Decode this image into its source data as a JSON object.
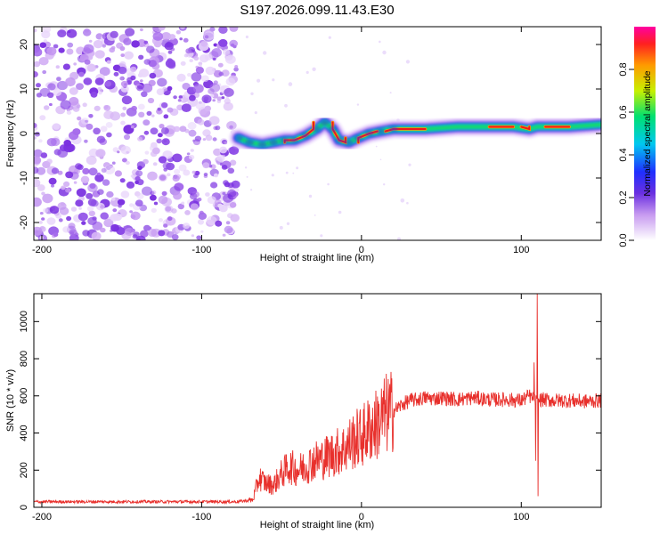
{
  "title": "S197.2026.099.11.43.E30",
  "chart_data": [
    {
      "type": "heatmap",
      "name": "spectrogram",
      "xlabel": "Height of straight line (km)",
      "ylabel": "Frequency (Hz)",
      "xlim": [
        -205,
        150
      ],
      "ylim": [
        -24,
        24
      ],
      "xticks": [
        -200,
        -100,
        0,
        100
      ],
      "yticks": [
        -20,
        -10,
        0,
        10,
        20
      ],
      "noise_region_end_km": -78,
      "ridge_track": [
        {
          "x": -77,
          "y": -1
        },
        {
          "x": -70,
          "y": -2
        },
        {
          "x": -62,
          "y": -2.5
        },
        {
          "x": -55,
          "y": -2
        },
        {
          "x": -48,
          "y": -1.5
        },
        {
          "x": -42,
          "y": -1.5
        },
        {
          "x": -35,
          "y": -0.5
        },
        {
          "x": -28,
          "y": 1
        },
        {
          "x": -23,
          "y": 2.5
        },
        {
          "x": -18,
          "y": 1
        },
        {
          "x": -14,
          "y": -1.5
        },
        {
          "x": -8,
          "y": -2
        },
        {
          "x": -2,
          "y": -1
        },
        {
          "x": 5,
          "y": 0
        },
        {
          "x": 12,
          "y": 0.5
        },
        {
          "x": 20,
          "y": 1
        },
        {
          "x": 40,
          "y": 1
        },
        {
          "x": 60,
          "y": 1.5
        },
        {
          "x": 80,
          "y": 1.5
        },
        {
          "x": 95,
          "y": 1.5
        },
        {
          "x": 105,
          "y": 1
        },
        {
          "x": 110,
          "y": 1.5
        },
        {
          "x": 130,
          "y": 1.5
        },
        {
          "x": 150,
          "y": 2
        }
      ],
      "colorbar": {
        "label": "Normalized spectral amplitude",
        "ticks": [
          "0.0",
          "0.2",
          "0.4",
          "0.6",
          "0.8"
        ],
        "range": [
          0,
          1
        ]
      }
    },
    {
      "type": "line",
      "name": "snr",
      "xlabel": "Height of straight line (km)",
      "ylabel": "SNR (10 * v/v)",
      "xlim": [
        -205,
        150
      ],
      "ylim": [
        0,
        1150
      ],
      "xticks": [
        -200,
        -100,
        0,
        100
      ],
      "yticks": [
        0,
        200,
        400,
        600,
        800,
        1000
      ],
      "color": "#e8302c",
      "x": [
        -205,
        -100,
        -78,
        -68,
        -64,
        -60,
        -55,
        -50,
        -45,
        -40,
        -35,
        -30,
        -25,
        -20,
        -15,
        -10,
        -5,
        0,
        5,
        10,
        15,
        20,
        25,
        30,
        35,
        40,
        45,
        50,
        60,
        70,
        80,
        90,
        100,
        105,
        108,
        110,
        112,
        120,
        130,
        140,
        150
      ],
      "y": [
        30,
        30,
        30,
        40,
        160,
        130,
        120,
        180,
        220,
        200,
        220,
        250,
        260,
        280,
        300,
        320,
        360,
        380,
        420,
        450,
        500,
        520,
        550,
        575,
        580,
        590,
        585,
        590,
        580,
        590,
        580,
        580,
        575,
        600,
        580,
        560,
        580,
        575,
        575,
        570,
        575
      ],
      "spikes": [
        {
          "x": 108,
          "y": 780
        },
        {
          "x": 109,
          "y": 250
        },
        {
          "x": 110,
          "y": 1150
        },
        {
          "x": 110.5,
          "y": 60
        }
      ]
    }
  ]
}
